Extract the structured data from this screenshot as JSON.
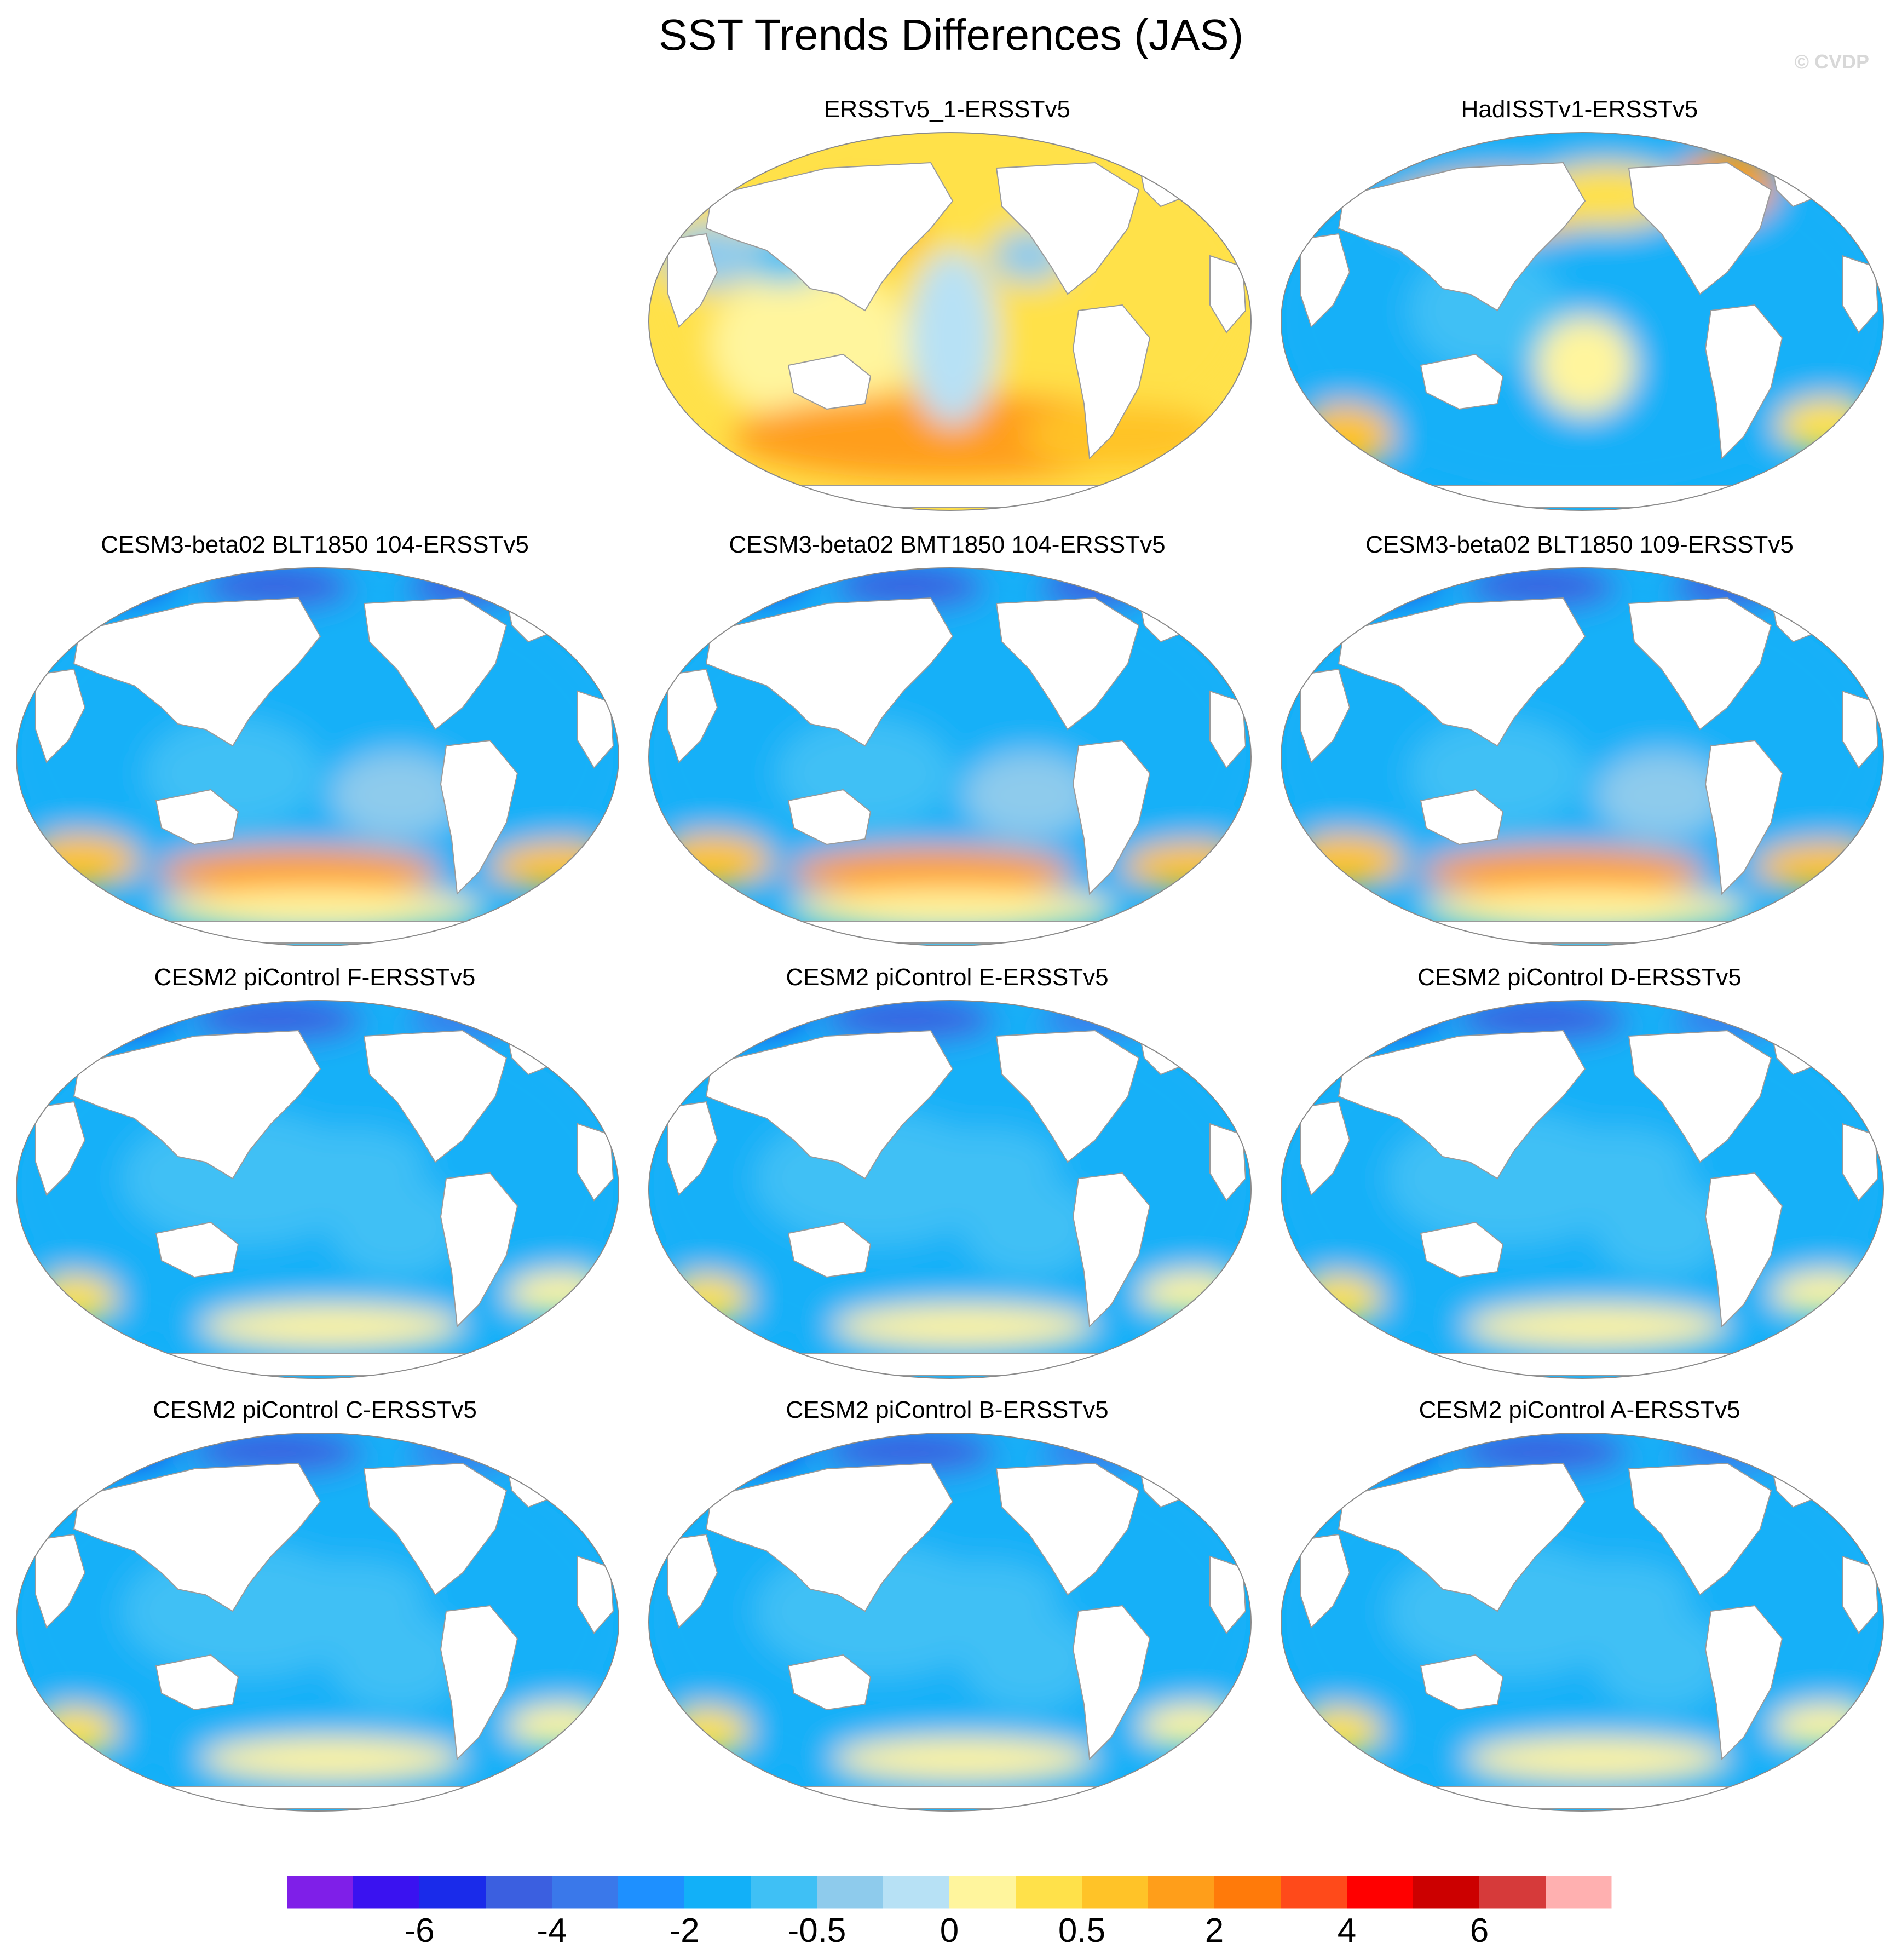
{
  "title": "SST Trends Differences (JAS)",
  "watermark": "© CVDP",
  "panels": [
    {
      "title": "ERSSTv5_1-ERSSTv5",
      "scheme": "warm"
    },
    {
      "title": "HadISSTv1-ERSSTv5",
      "scheme": "mixed"
    },
    {
      "title": "CESM3-beta02 BLT1850 104-ERSSTv5",
      "scheme": "cool-warm-south"
    },
    {
      "title": "CESM3-beta02 BMT1850 104-ERSSTv5",
      "scheme": "cool-warm-south"
    },
    {
      "title": "CESM3-beta02 BLT1850 109-ERSSTv5",
      "scheme": "cool-warm-south"
    },
    {
      "title": "CESM2 piControl F-ERSSTv5",
      "scheme": "cool"
    },
    {
      "title": "CESM2 piControl E-ERSSTv5",
      "scheme": "cool"
    },
    {
      "title": "CESM2 piControl D-ERSSTv5",
      "scheme": "cool"
    },
    {
      "title": "CESM2 piControl C-ERSSTv5",
      "scheme": "cool"
    },
    {
      "title": "CESM2 piControl B-ERSSTv5",
      "scheme": "cool"
    },
    {
      "title": "CESM2 piControl A-ERSSTv5",
      "scheme": "cool"
    }
  ],
  "colorbar": {
    "colors": [
      "#7f1fe8",
      "#3a12f0",
      "#1a2bea",
      "#3b5fe0",
      "#3a78ea",
      "#1e90ff",
      "#12b0f8",
      "#3fc0f5",
      "#8ecbec",
      "#b7e1f5",
      "#fff59d",
      "#ffe14a",
      "#ffc328",
      "#ff9e1a",
      "#ff7a0a",
      "#ff4a1a",
      "#ff0000",
      "#cc0000",
      "#d63a3a",
      "#ffb0b0"
    ],
    "labels": [
      "-6",
      "-4",
      "-2",
      "-0.5",
      "0",
      "0.5",
      "2",
      "4",
      "6"
    ]
  },
  "colors": {
    "land": "#ffffff",
    "coast": "#9a9a9a",
    "cool_ocean": "#12b0f8",
    "warm_ocean": "#ffe14a"
  }
}
